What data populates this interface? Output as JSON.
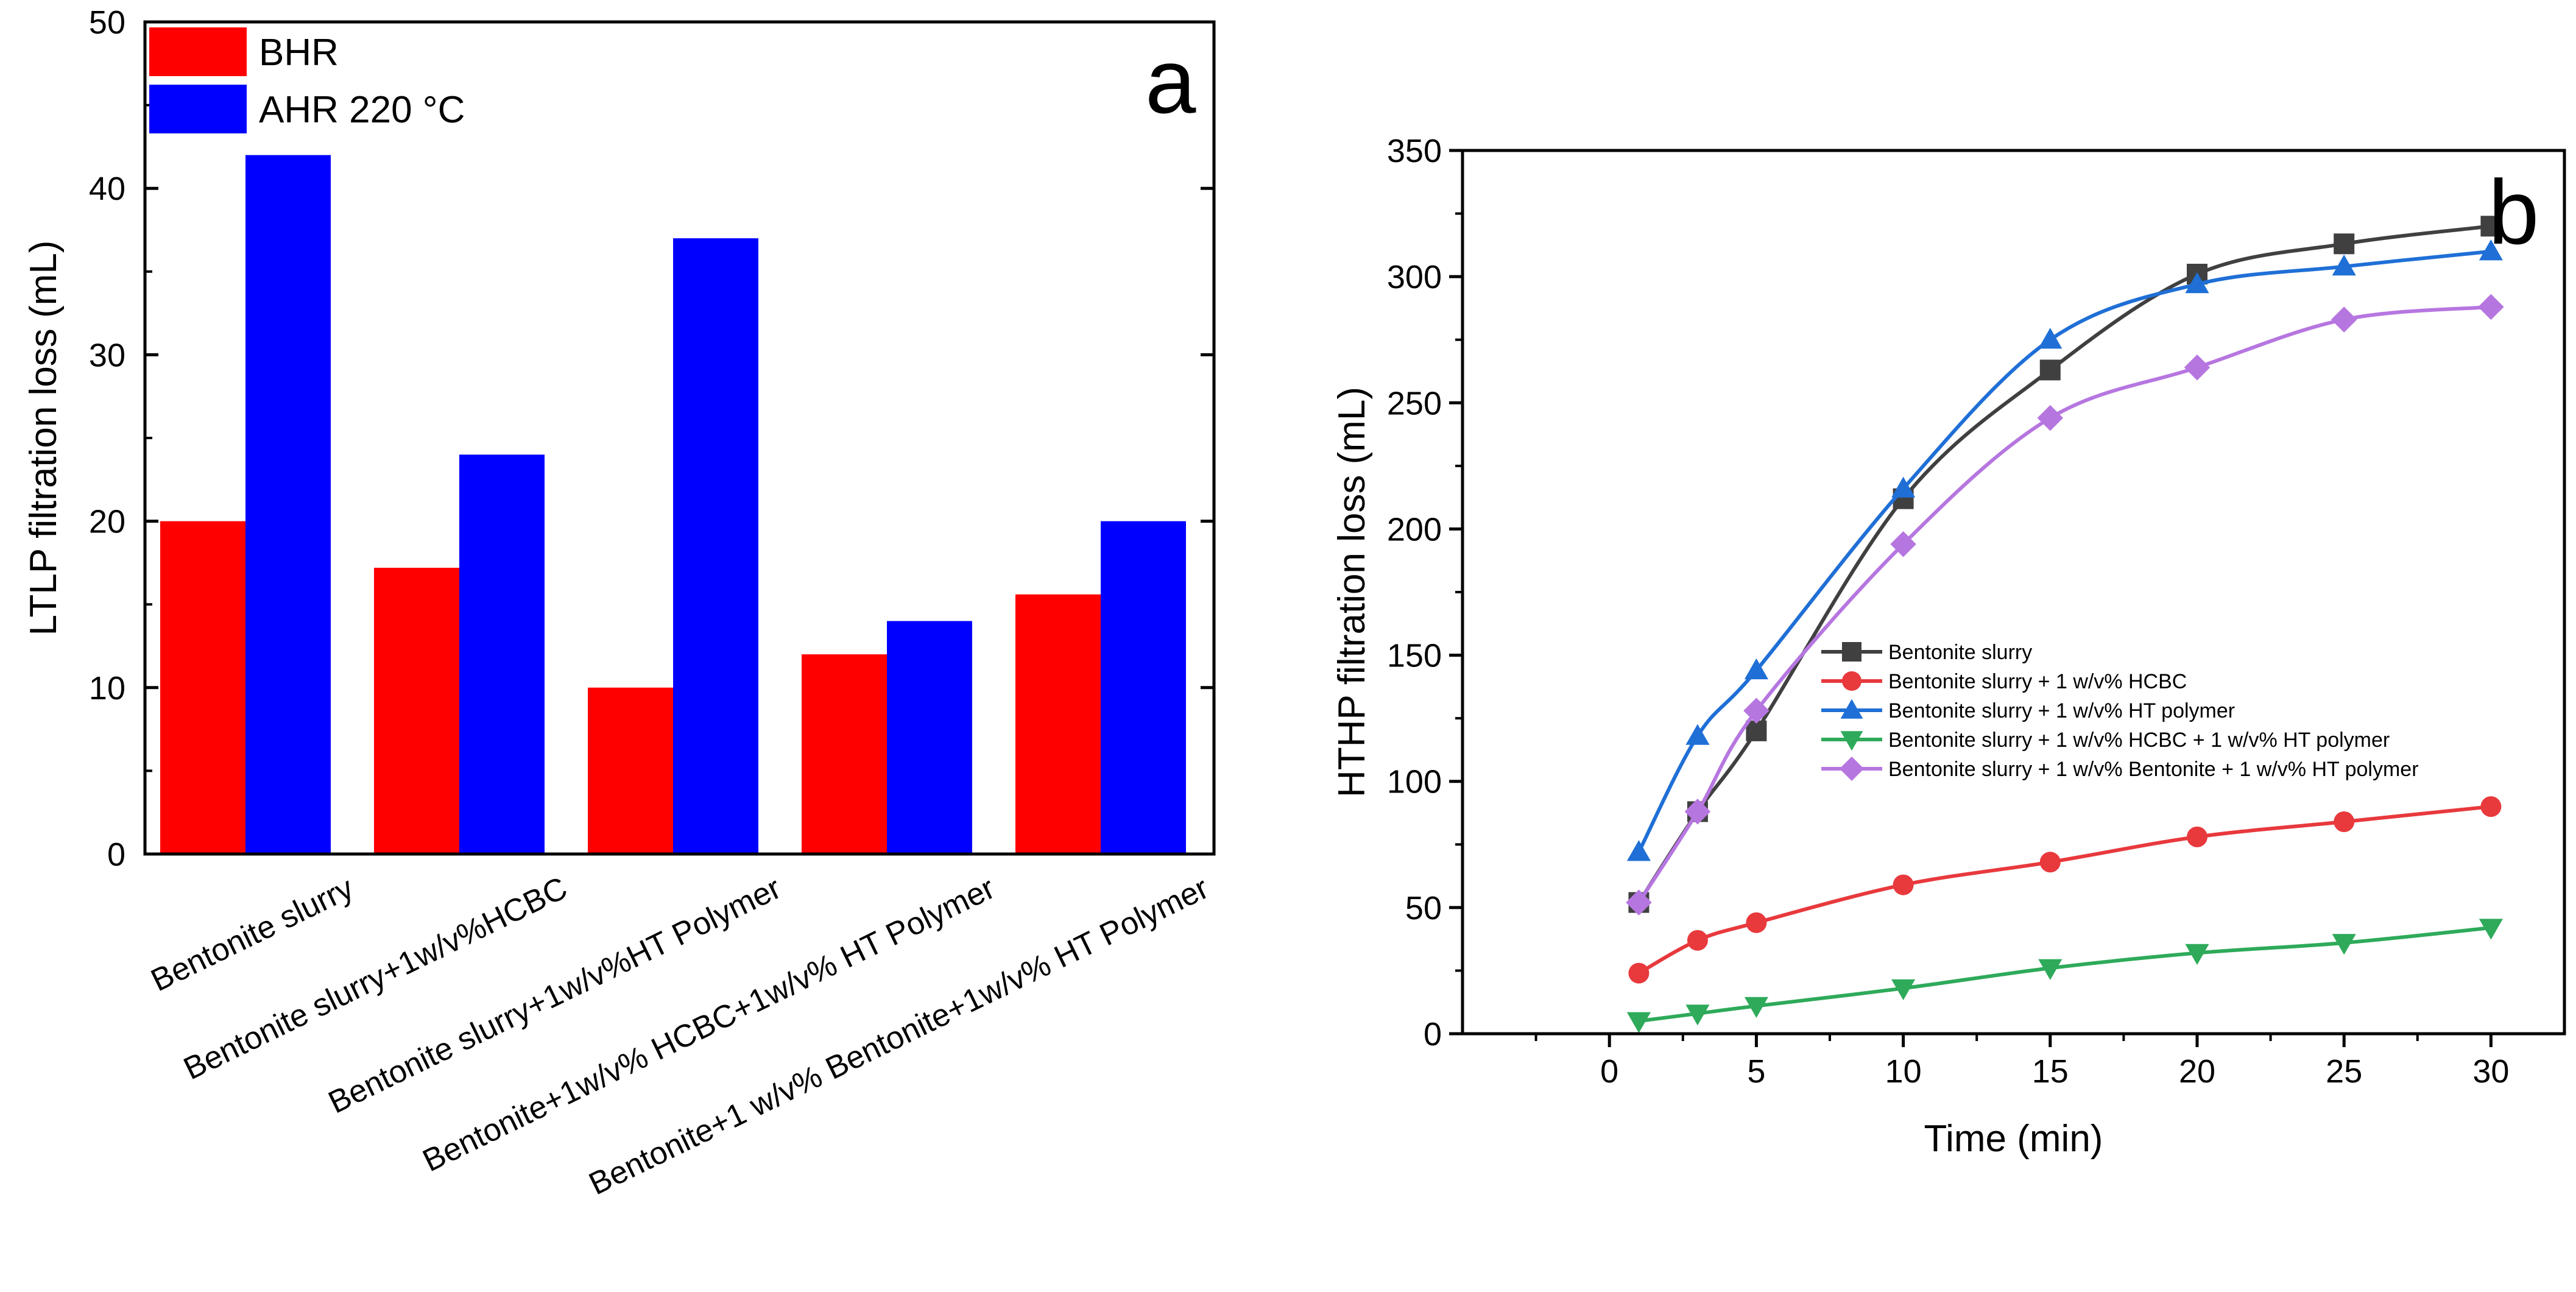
{
  "chart_data": [
    {
      "panel": "a",
      "type": "bar",
      "categories": [
        "Bentonite slurry",
        "Bentonite slurry+1w/v%HCBC",
        "Bentonite slurry+1w/v%HT Polymer",
        "Bentonite+1w/v% HCBC+1w/v% HT Polymer",
        "Bentonite+1 w/v% Bentonite+1w/v% HT Polymer"
      ],
      "series": [
        {
          "name": "BHR",
          "color": "#ff0000",
          "values": [
            20,
            17.2,
            10,
            12,
            15.6
          ]
        },
        {
          "name": "AHR 220 °C",
          "color": "#0000ff",
          "values": [
            42,
            24,
            37,
            14,
            20
          ]
        }
      ],
      "title": "",
      "xlabel": "",
      "ylabel": "LTLP filtration loss (mL)",
      "ylim": [
        0,
        50
      ],
      "yticks": [
        0,
        10,
        20,
        30,
        40,
        50
      ],
      "legend": "top-left",
      "grid": false
    },
    {
      "panel": "b",
      "type": "line",
      "title": "",
      "xlabel": "Time (min)",
      "ylabel": "HTHP filtration loss (mL)",
      "xlim": [
        -5,
        32.5
      ],
      "ylim": [
        0,
        350
      ],
      "xticks": [
        0,
        5,
        10,
        15,
        20,
        25,
        30
      ],
      "yticks": [
        0,
        50,
        100,
        150,
        200,
        250,
        300,
        350
      ],
      "x": [
        1,
        3,
        5,
        10,
        15,
        20,
        25,
        30
      ],
      "series": [
        {
          "name": "Bentonite slurry",
          "color": "#404040",
          "marker": "square",
          "values": [
            52,
            88,
            120,
            212,
            263,
            301,
            313,
            320
          ]
        },
        {
          "name": "Bentonite slurry + 1 w/v% HCBC",
          "color": "#e8393d",
          "marker": "circle",
          "values": [
            24,
            37,
            44,
            59,
            68,
            78,
            84,
            90
          ]
        },
        {
          "name": "Bentonite slurry + 1 w/v% HT polymer",
          "color": "#1f6fd6",
          "marker": "triangle-up",
          "values": [
            72,
            118,
            144,
            216,
            275,
            297,
            304,
            310
          ]
        },
        {
          "name": "Bentonite slurry + 1 w/v% HCBC + 1 w/v% HT polymer",
          "color": "#2eaa5a",
          "marker": "triangle-down",
          "values": [
            5,
            8,
            11,
            18,
            26,
            32,
            36,
            42
          ]
        },
        {
          "name": "Bentonite slurry + 1 w/v% Bentonite + 1 w/v% HT polymer",
          "color": "#b676e0",
          "marker": "diamond",
          "values": [
            52,
            88,
            128,
            194,
            244,
            264,
            283,
            288
          ]
        }
      ],
      "legend": "center-right",
      "grid": false
    }
  ],
  "panel_letters": {
    "a": "a",
    "b": "b"
  }
}
